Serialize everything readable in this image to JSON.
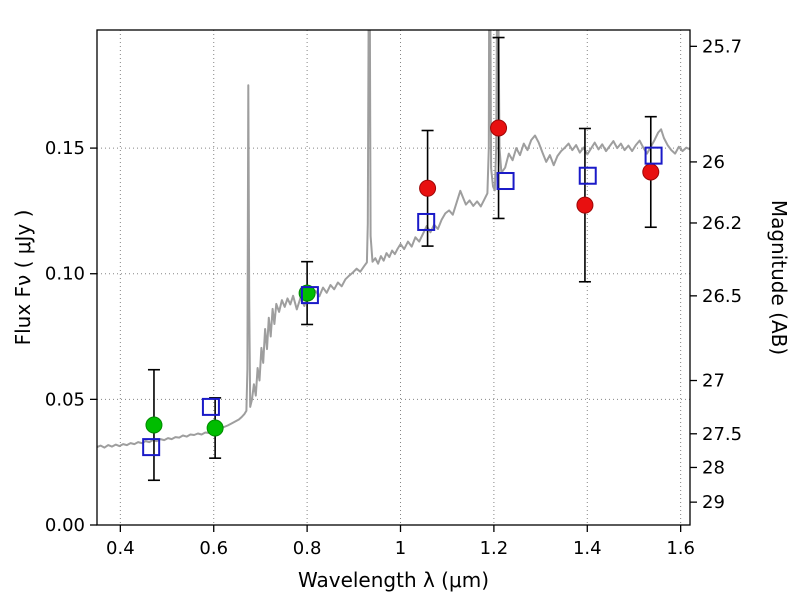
{
  "figure": {
    "background": "#ffffff",
    "frame_color": "#000000"
  },
  "chart_data": {
    "type": "line",
    "title": "",
    "xlabel": "Wavelength  λ (μm)",
    "ylabel_left": "Flux  Fν ( μJy )",
    "ylabel_right": "Magnitude (AB)",
    "xlim": [
      0.35,
      1.62
    ],
    "ylim": [
      0.0,
      0.197
    ],
    "grid": {
      "on": true,
      "style": "dotted",
      "color": "#858585",
      "x_at": [
        0.4,
        0.6,
        0.8,
        1.0,
        1.2,
        1.4,
        1.6
      ],
      "y_at": [
        0.05,
        0.1,
        0.15
      ]
    },
    "xticks": [
      {
        "v": 0.4,
        "label": "0.4"
      },
      {
        "v": 0.6,
        "label": "0.6"
      },
      {
        "v": 0.8,
        "label": "0.8"
      },
      {
        "v": 1.0,
        "label": "1"
      },
      {
        "v": 1.2,
        "label": "1.2"
      },
      {
        "v": 1.4,
        "label": "1.4"
      },
      {
        "v": 1.6,
        "label": "1.6"
      }
    ],
    "yticks_left": [
      {
        "v": 0.0,
        "label": "0.00"
      },
      {
        "v": 0.05,
        "label": "0.05"
      },
      {
        "v": 0.1,
        "label": "0.10"
      },
      {
        "v": 0.15,
        "label": "0.15"
      }
    ],
    "yticks_right": [
      {
        "v": 0.1905,
        "label": "25.7"
      },
      {
        "v": 0.1445,
        "label": "26"
      },
      {
        "v": 0.1202,
        "label": "26.2"
      },
      {
        "v": 0.0912,
        "label": "26.5"
      },
      {
        "v": 0.0575,
        "label": "27"
      },
      {
        "v": 0.0363,
        "label": "27.5"
      },
      {
        "v": 0.0229,
        "label": "28"
      },
      {
        "v": 0.0091,
        "label": "29"
      }
    ],
    "errorbar": {
      "color": "#000000",
      "cap_halfwidth": 6
    },
    "spectrum": {
      "name": "model-spectrum",
      "color": "#9e9e9e",
      "points": [
        [
          0.35,
          0.031
        ],
        [
          0.358,
          0.0316
        ],
        [
          0.366,
          0.0308
        ],
        [
          0.374,
          0.0318
        ],
        [
          0.382,
          0.0312
        ],
        [
          0.39,
          0.032
        ],
        [
          0.398,
          0.0314
        ],
        [
          0.406,
          0.0322
        ],
        [
          0.414,
          0.0318
        ],
        [
          0.422,
          0.0326
        ],
        [
          0.43,
          0.0322
        ],
        [
          0.438,
          0.033
        ],
        [
          0.446,
          0.0326
        ],
        [
          0.454,
          0.0334
        ],
        [
          0.462,
          0.033
        ],
        [
          0.47,
          0.0338
        ],
        [
          0.478,
          0.0334
        ],
        [
          0.486,
          0.0342
        ],
        [
          0.494,
          0.0338
        ],
        [
          0.502,
          0.0346
        ],
        [
          0.51,
          0.0342
        ],
        [
          0.518,
          0.035
        ],
        [
          0.526,
          0.0348
        ],
        [
          0.534,
          0.0356
        ],
        [
          0.542,
          0.0352
        ],
        [
          0.55,
          0.036
        ],
        [
          0.558,
          0.0358
        ],
        [
          0.566,
          0.0364
        ],
        [
          0.574,
          0.036
        ],
        [
          0.582,
          0.0368
        ],
        [
          0.59,
          0.0366
        ],
        [
          0.598,
          0.0372
        ],
        [
          0.606,
          0.0376
        ],
        [
          0.614,
          0.0382
        ],
        [
          0.622,
          0.039
        ],
        [
          0.63,
          0.0396
        ],
        [
          0.638,
          0.0404
        ],
        [
          0.646,
          0.0412
        ],
        [
          0.654,
          0.042
        ],
        [
          0.66,
          0.043
        ],
        [
          0.666,
          0.0442
        ],
        [
          0.67,
          0.0455
        ],
        [
          0.672,
          0.062
        ],
        [
          0.674,
          0.175
        ],
        [
          0.676,
          0.09
        ],
        [
          0.678,
          0.047
        ],
        [
          0.682,
          0.05
        ],
        [
          0.686,
          0.056
        ],
        [
          0.69,
          0.0515
        ],
        [
          0.694,
          0.0625
        ],
        [
          0.698,
          0.0575
        ],
        [
          0.702,
          0.0705
        ],
        [
          0.706,
          0.0645
        ],
        [
          0.71,
          0.078
        ],
        [
          0.714,
          0.07
        ],
        [
          0.718,
          0.0825
        ],
        [
          0.722,
          0.075
        ],
        [
          0.726,
          0.086
        ],
        [
          0.73,
          0.08
        ],
        [
          0.734,
          0.088
        ],
        [
          0.74,
          0.0848
        ],
        [
          0.746,
          0.0895
        ],
        [
          0.752,
          0.0868
        ],
        [
          0.758,
          0.0902
        ],
        [
          0.764,
          0.0878
        ],
        [
          0.77,
          0.0912
        ],
        [
          0.778,
          0.0858
        ],
        [
          0.786,
          0.0905
        ],
        [
          0.794,
          0.0872
        ],
        [
          0.802,
          0.092
        ],
        [
          0.81,
          0.0898
        ],
        [
          0.818,
          0.0932
        ],
        [
          0.826,
          0.091
        ],
        [
          0.834,
          0.0945
        ],
        [
          0.842,
          0.0924
        ],
        [
          0.85,
          0.0955
        ],
        [
          0.858,
          0.0938
        ],
        [
          0.866,
          0.0965
        ],
        [
          0.874,
          0.095
        ],
        [
          0.882,
          0.0978
        ],
        [
          0.89,
          0.0992
        ],
        [
          0.898,
          0.1005
        ],
        [
          0.906,
          0.102
        ],
        [
          0.914,
          0.1008
        ],
        [
          0.922,
          0.103
        ],
        [
          0.928,
          0.1045
        ],
        [
          0.93,
          0.12
        ],
        [
          0.932,
          0.22
        ],
        [
          0.934,
          0.22
        ],
        [
          0.936,
          0.115
        ],
        [
          0.94,
          0.1048
        ],
        [
          0.946,
          0.1062
        ],
        [
          0.952,
          0.104
        ],
        [
          0.958,
          0.107
        ],
        [
          0.964,
          0.1052
        ],
        [
          0.97,
          0.1082
        ],
        [
          0.976,
          0.1066
        ],
        [
          0.982,
          0.1092
        ],
        [
          0.988,
          0.1078
        ],
        [
          0.994,
          0.11
        ],
        [
          1.0,
          0.1118
        ],
        [
          1.008,
          0.1098
        ],
        [
          1.016,
          0.1128
        ],
        [
          1.024,
          0.1108
        ],
        [
          1.032,
          0.1145
        ],
        [
          1.04,
          0.1128
        ],
        [
          1.048,
          0.1158
        ],
        [
          1.056,
          0.119
        ],
        [
          1.064,
          0.1165
        ],
        [
          1.072,
          0.1195
        ],
        [
          1.08,
          0.1178
        ],
        [
          1.088,
          0.1215
        ],
        [
          1.096,
          0.124
        ],
        [
          1.104,
          0.1252
        ],
        [
          1.112,
          0.1235
        ],
        [
          1.12,
          0.1282
        ],
        [
          1.128,
          0.133
        ],
        [
          1.134,
          0.1302
        ],
        [
          1.14,
          0.1275
        ],
        [
          1.148,
          0.1292
        ],
        [
          1.156,
          0.127
        ],
        [
          1.164,
          0.1288
        ],
        [
          1.172,
          0.1268
        ],
        [
          1.18,
          0.1298
        ],
        [
          1.186,
          0.132
        ],
        [
          1.189,
          0.15
        ],
        [
          1.19,
          0.22
        ],
        [
          1.192,
          0.22
        ],
        [
          1.194,
          0.142
        ],
        [
          1.198,
          0.1348
        ],
        [
          1.202,
          0.1332
        ],
        [
          1.205,
          0.15
        ],
        [
          1.207,
          0.22
        ],
        [
          1.209,
          0.22
        ],
        [
          1.212,
          0.15
        ],
        [
          1.216,
          0.1402
        ],
        [
          1.224,
          0.1422
        ],
        [
          1.232,
          0.1478
        ],
        [
          1.24,
          0.1452
        ],
        [
          1.248,
          0.15
        ],
        [
          1.256,
          0.1472
        ],
        [
          1.264,
          0.1518
        ],
        [
          1.272,
          0.1492
        ],
        [
          1.28,
          0.1532
        ],
        [
          1.288,
          0.155
        ],
        [
          1.296,
          0.1522
        ],
        [
          1.304,
          0.1482
        ],
        [
          1.312,
          0.1445
        ],
        [
          1.32,
          0.1472
        ],
        [
          1.328,
          0.1432
        ],
        [
          1.336,
          0.1468
        ],
        [
          1.344,
          0.1488
        ],
        [
          1.352,
          0.1502
        ],
        [
          1.36,
          0.1518
        ],
        [
          1.368,
          0.1492
        ],
        [
          1.376,
          0.1512
        ],
        [
          1.384,
          0.1482
        ],
        [
          1.392,
          0.1502
        ],
        [
          1.4,
          0.1475
        ],
        [
          1.408,
          0.1498
        ],
        [
          1.416,
          0.1522
        ],
        [
          1.424,
          0.1495
        ],
        [
          1.432,
          0.1515
        ],
        [
          1.44,
          0.1488
        ],
        [
          1.448,
          0.1508
        ],
        [
          1.456,
          0.1528
        ],
        [
          1.464,
          0.15
        ],
        [
          1.472,
          0.1518
        ],
        [
          1.48,
          0.1492
        ],
        [
          1.488,
          0.151
        ],
        [
          1.496,
          0.1488
        ],
        [
          1.504,
          0.1512
        ],
        [
          1.512,
          0.153
        ],
        [
          1.52,
          0.1502
        ],
        [
          1.528,
          0.1478
        ],
        [
          1.536,
          0.1505
        ],
        [
          1.544,
          0.1532
        ],
        [
          1.552,
          0.1562
        ],
        [
          1.558,
          0.1575
        ],
        [
          1.564,
          0.154
        ],
        [
          1.572,
          0.1512
        ],
        [
          1.58,
          0.1492
        ],
        [
          1.588,
          0.1478
        ],
        [
          1.596,
          0.1505
        ],
        [
          1.604,
          0.1488
        ],
        [
          1.612,
          0.1502
        ],
        [
          1.62,
          0.1495
        ]
      ]
    },
    "series": [
      {
        "name": "observed-photometry-green-circles",
        "marker": "circle",
        "fill": "#00bd00",
        "edge": "#008a00",
        "points": [
          {
            "x": 0.472,
            "y": 0.0398,
            "yerr": 0.022
          },
          {
            "x": 0.603,
            "y": 0.0386,
            "yerr": 0.012
          },
          {
            "x": 0.8,
            "y": 0.0923,
            "yerr": 0.0125
          }
        ]
      },
      {
        "name": "observed-photometry-red-circles",
        "marker": "circle",
        "fill": "#e81010",
        "edge": "#9e0606",
        "points": [
          {
            "x": 1.058,
            "y": 0.134,
            "yerr": 0.023
          },
          {
            "x": 1.21,
            "y": 0.158,
            "yerr": 0.036
          },
          {
            "x": 1.395,
            "y": 0.1273,
            "yerr": 0.0305
          },
          {
            "x": 1.536,
            "y": 0.1405,
            "yerr": 0.022
          }
        ]
      },
      {
        "name": "model-photometry-blue-open-squares",
        "marker": "square-open",
        "fill": "none",
        "edge": "#1a1ac8",
        "points": [
          {
            "x": 0.466,
            "y": 0.031
          },
          {
            "x": 0.594,
            "y": 0.047
          },
          {
            "x": 0.806,
            "y": 0.0915
          },
          {
            "x": 1.055,
            "y": 0.1206
          },
          {
            "x": 1.225,
            "y": 0.1369
          },
          {
            "x": 1.401,
            "y": 0.139
          },
          {
            "x": 1.542,
            "y": 0.147
          }
        ]
      }
    ]
  }
}
